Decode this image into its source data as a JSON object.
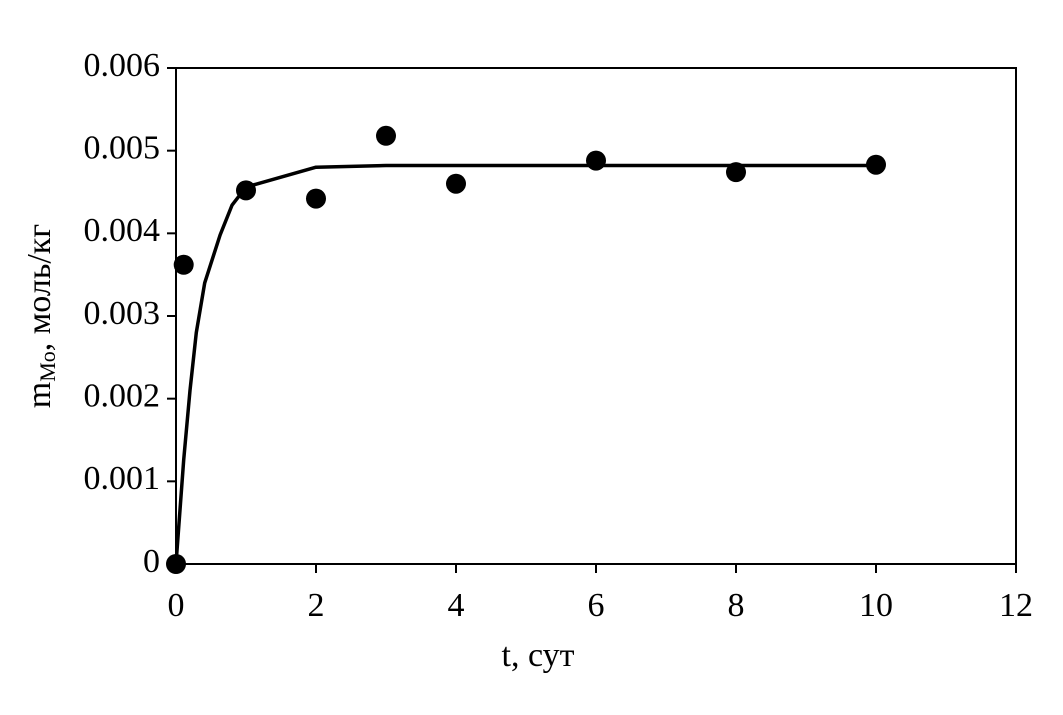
{
  "chart_data": {
    "type": "scatter",
    "xlabel": "t,  сут",
    "ylabel": {
      "main": "m",
      "sub": "Mo",
      "rest": ",  моль/кг"
    },
    "xlim": [
      0,
      12
    ],
    "xticks": [
      0,
      2,
      4,
      6,
      8,
      10,
      12
    ],
    "ylim": [
      0,
      0.006
    ],
    "yticks": [
      0,
      0.001,
      0.002,
      0.003,
      0.004,
      0.005,
      0.006
    ],
    "grid": false,
    "series": [
      {
        "type": "scatter",
        "color": "#000000",
        "x": [
          0,
          0.11,
          1,
          2,
          3,
          4,
          6,
          8,
          10
        ],
        "values": [
          0,
          0.00362,
          0.00452,
          0.00442,
          0.00518,
          0.0046,
          0.00488,
          0.00474,
          0.00483
        ]
      },
      {
        "type": "line",
        "color": "#000000",
        "x": [
          0,
          0.11,
          0.2,
          0.29,
          0.41,
          0.63,
          0.8,
          1,
          2,
          3,
          10
        ],
        "values": [
          0,
          0.00126,
          0.0021,
          0.0028,
          0.0034,
          0.00398,
          0.00434,
          0.00456,
          0.0048,
          0.00482,
          0.00482
        ]
      }
    ]
  }
}
